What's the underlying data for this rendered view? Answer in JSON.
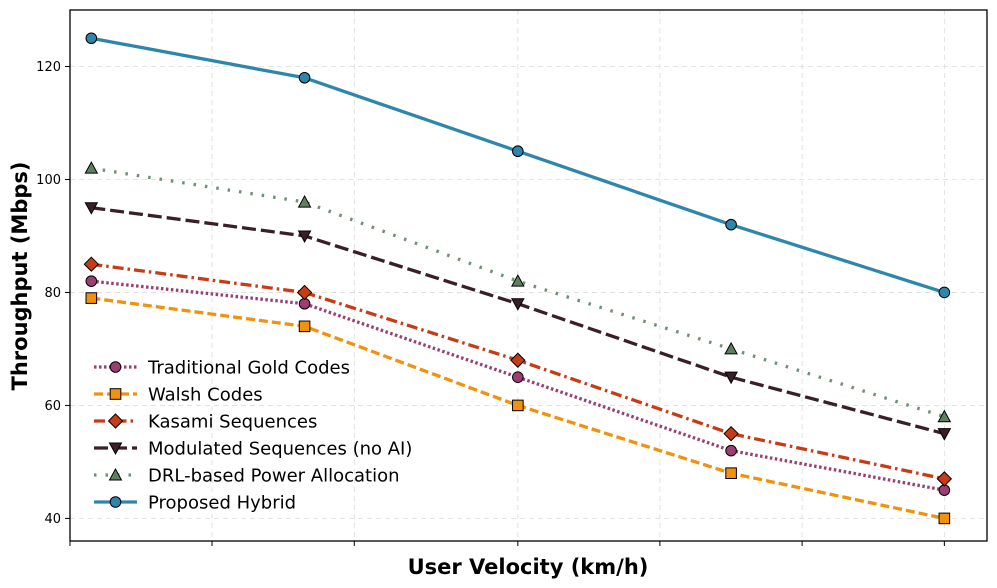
{
  "chart_data": {
    "type": "line",
    "title": "",
    "xlabel": "User Velocity (km/h)",
    "ylabel": "Throughput (Mbps)",
    "x": [
      0,
      1,
      2,
      3,
      4
    ],
    "xlim": [
      -0.1,
      4.2
    ],
    "ylim": [
      36,
      130
    ],
    "yticks": [
      40,
      60,
      80,
      100,
      120
    ],
    "xtick_positions": [
      -0.1,
      0.566,
      1.233,
      2,
      2.666,
      3.333,
      4
    ],
    "grid": true,
    "legend_position": "lower-left",
    "series": [
      {
        "name": "Traditional Gold Codes",
        "values": [
          82,
          78,
          65,
          52,
          45
        ],
        "color": "#9b3f73",
        "line": "dotted",
        "marker": "circle",
        "marker_color": "#9b3f73"
      },
      {
        "name": "Walsh Codes",
        "values": [
          79,
          74,
          60,
          48,
          40
        ],
        "color": "#f0920e",
        "line": "dashed",
        "marker": "square",
        "marker_color": "#f0920e"
      },
      {
        "name": "Kasami Sequences",
        "values": [
          85,
          80,
          68,
          55,
          47
        ],
        "color": "#c63c17",
        "line": "dashdot",
        "marker": "diamond",
        "marker_color": "#c63c17"
      },
      {
        "name": "Modulated Sequences (no AI)",
        "values": [
          95,
          90,
          78,
          65,
          55
        ],
        "color": "#3b1f27",
        "line": "longdash",
        "marker": "triangle-down",
        "marker_color": "#3b1f27"
      },
      {
        "name": "DRL-based Power Allocation",
        "values": [
          102,
          96,
          82,
          70,
          58
        ],
        "color": "#6f9173",
        "line": "dotted-sparse",
        "marker": "triangle-up",
        "marker_color": "#5e8060"
      },
      {
        "name": "Proposed Hybrid",
        "values": [
          125,
          118,
          105,
          92,
          80
        ],
        "color": "#2e86ab",
        "line": "solid",
        "marker": "circle",
        "marker_color": "#2e86ab"
      }
    ]
  }
}
